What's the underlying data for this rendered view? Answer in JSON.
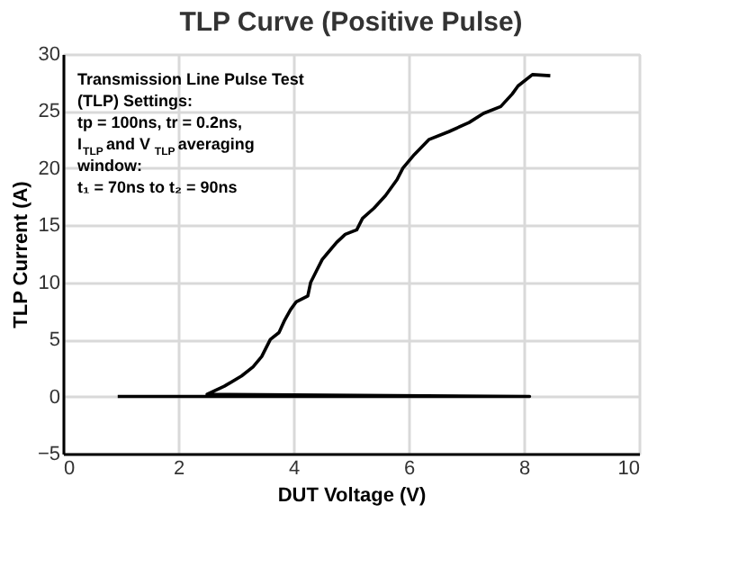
{
  "chart_data": {
    "type": "line",
    "title": "TLP Curve (Positive Pulse)",
    "xlabel": "DUT Voltage (V)",
    "ylabel": "TLP Current (A)",
    "annotations": [
      "Transmission Line Pulse Test\n(TLP) Settings:\ntp = 100ns, tr = 0.2ns,\nI$_{TLP}$ and V$_{TLP}$ averaging\nwindow:\nt₁ = 70ns to t₂ = 90ns"
    ],
    "series": [
      {
        "color": "#000000",
        "x": [
          0.95,
          8.1,
          2.5,
          2.8,
          3.1,
          3.3,
          3.45,
          3.6,
          3.75,
          3.85,
          3.95,
          4.05,
          4.25,
          4.3,
          4.4,
          4.5,
          4.6,
          4.75,
          4.9,
          5.1,
          5.2,
          5.4,
          5.6,
          5.8,
          5.9,
          6.1,
          6.35,
          6.7,
          7.05,
          7.3,
          7.6,
          7.8,
          7.9,
          8.15,
          8.46
        ],
        "values": [
          0,
          0,
          0.2,
          0.9,
          1.8,
          2.6,
          3.5,
          5,
          5.6,
          6.7,
          7.6,
          8.3,
          8.8,
          10,
          11,
          12,
          12.6,
          13.5,
          14.2,
          14.6,
          15.6,
          16.5,
          17.6,
          19,
          20,
          21.2,
          22.5,
          23.2,
          24,
          24.8,
          25.4,
          26.5,
          27.2,
          28.2,
          28.1
        ]
      }
    ],
    "xlim": [
      0,
      10
    ],
    "xticks": [
      0,
      2,
      4,
      6,
      8,
      10
    ],
    "ylim": [
      -5,
      30
    ],
    "yticks": [
      -5,
      0,
      5,
      10,
      15,
      20,
      25,
      30
    ],
    "grid": true,
    "marker": "none",
    "line_style": "solid"
  }
}
